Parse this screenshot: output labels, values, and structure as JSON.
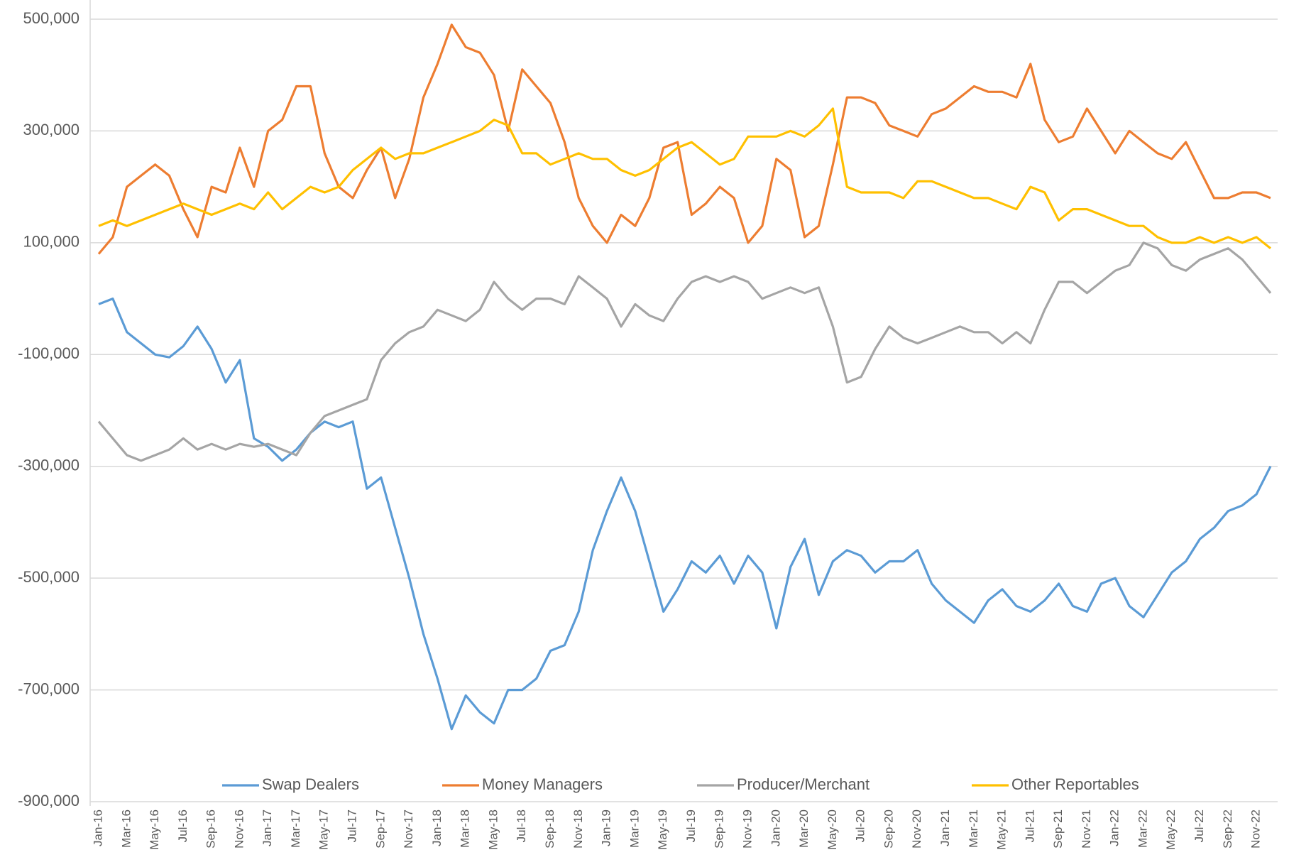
{
  "chart_data": {
    "type": "line",
    "categories": [
      "Jan-16",
      null,
      "Mar-16",
      null,
      "May-16",
      null,
      "Jul-16",
      null,
      "Sep-16",
      null,
      "Nov-16",
      null,
      "Jan-17",
      null,
      "Mar-17",
      null,
      "May-17",
      null,
      "Jul-17",
      null,
      "Sep-17",
      null,
      "Nov-17",
      null,
      "Jan-18",
      null,
      "Mar-18",
      null,
      "May-18",
      null,
      "Jul-18",
      null,
      "Sep-18",
      null,
      "Nov-18",
      null,
      "Jan-19",
      null,
      "Mar-19",
      null,
      "May-19",
      null,
      "Jul-19",
      null,
      "Sep-19",
      null,
      "Nov-19",
      null,
      "Jan-20",
      null,
      "Mar-20",
      null,
      "May-20",
      null,
      "Jul-20",
      null,
      "Sep-20",
      null,
      "Nov-20",
      null,
      "Jan-21",
      null,
      "Mar-21",
      null,
      "May-21",
      null,
      "Jul-21",
      null,
      "Sep-21",
      null,
      "Nov-21",
      null,
      "Jan-22",
      null,
      "Mar-22",
      null,
      "May-22",
      null,
      "Jul-22",
      null,
      "Sep-22",
      null,
      "Nov-22",
      null
    ],
    "series": [
      {
        "name": "Swap Dealers",
        "color": "#5b9bd5",
        "values": [
          -10000,
          0,
          -60000,
          -80000,
          -100000,
          -105000,
          -85000,
          -50000,
          -90000,
          -150000,
          -110000,
          -250000,
          -265000,
          -290000,
          -270000,
          -240000,
          -220000,
          -230000,
          -220000,
          -340000,
          -320000,
          -410000,
          -500000,
          -600000,
          -680000,
          -770000,
          -710000,
          -740000,
          -760000,
          -700000,
          -700000,
          -680000,
          -630000,
          -620000,
          -560000,
          -450000,
          -380000,
          -320000,
          -380000,
          -470000,
          -560000,
          -520000,
          -470000,
          -490000,
          -460000,
          -510000,
          -460000,
          -490000,
          -590000,
          -480000,
          -430000,
          -530000,
          -470000,
          -450000,
          -460000,
          -490000,
          -470000,
          -470000,
          -450000,
          -510000,
          -540000,
          -560000,
          -580000,
          -540000,
          -520000,
          -550000,
          -560000,
          -540000,
          -510000,
          -550000,
          -560000,
          -510000,
          -500000,
          -550000,
          -570000,
          -530000,
          -490000,
          -470000,
          -430000,
          -410000,
          -380000,
          -370000,
          -350000,
          -300000
        ]
      },
      {
        "name": "Money Managers",
        "color": "#ed7d31",
        "values": [
          80000,
          110000,
          200000,
          220000,
          240000,
          220000,
          160000,
          110000,
          200000,
          190000,
          270000,
          200000,
          300000,
          320000,
          380000,
          380000,
          260000,
          200000,
          180000,
          230000,
          270000,
          180000,
          250000,
          360000,
          420000,
          490000,
          450000,
          440000,
          400000,
          300000,
          410000,
          380000,
          350000,
          280000,
          180000,
          130000,
          100000,
          150000,
          130000,
          180000,
          270000,
          280000,
          150000,
          170000,
          200000,
          180000,
          100000,
          130000,
          250000,
          230000,
          110000,
          130000,
          240000,
          360000,
          360000,
          350000,
          310000,
          300000,
          290000,
          330000,
          340000,
          360000,
          380000,
          370000,
          370000,
          360000,
          420000,
          320000,
          280000,
          290000,
          340000,
          300000,
          260000,
          300000,
          280000,
          260000,
          250000,
          280000,
          230000,
          180000,
          180000,
          190000,
          190000,
          180000
        ]
      },
      {
        "name": "Producer/Merchant",
        "color": "#a5a5a5",
        "values": [
          -220000,
          -250000,
          -280000,
          -290000,
          -280000,
          -270000,
          -250000,
          -270000,
          -260000,
          -270000,
          -260000,
          -265000,
          -260000,
          -270000,
          -280000,
          -240000,
          -210000,
          -200000,
          -190000,
          -180000,
          -110000,
          -80000,
          -60000,
          -50000,
          -20000,
          -30000,
          -40000,
          -20000,
          30000,
          0,
          -20000,
          0,
          0,
          -10000,
          40000,
          20000,
          0,
          -50000,
          -10000,
          -30000,
          -40000,
          0,
          30000,
          40000,
          30000,
          40000,
          30000,
          0,
          10000,
          20000,
          10000,
          20000,
          -50000,
          -150000,
          -140000,
          -90000,
          -50000,
          -70000,
          -80000,
          -70000,
          -60000,
          -50000,
          -60000,
          -60000,
          -80000,
          -60000,
          -80000,
          -20000,
          30000,
          30000,
          10000,
          30000,
          50000,
          60000,
          100000,
          90000,
          60000,
          50000,
          70000,
          80000,
          90000,
          70000,
          40000,
          10000
        ]
      },
      {
        "name": "Other Reportables",
        "color": "#ffc000",
        "values": [
          130000,
          140000,
          130000,
          140000,
          150000,
          160000,
          170000,
          160000,
          150000,
          160000,
          170000,
          160000,
          190000,
          160000,
          180000,
          200000,
          190000,
          200000,
          230000,
          250000,
          270000,
          250000,
          260000,
          260000,
          270000,
          280000,
          290000,
          300000,
          320000,
          310000,
          260000,
          260000,
          240000,
          250000,
          260000,
          250000,
          250000,
          230000,
          220000,
          230000,
          250000,
          270000,
          280000,
          260000,
          240000,
          250000,
          290000,
          290000,
          290000,
          300000,
          290000,
          310000,
          340000,
          200000,
          190000,
          190000,
          190000,
          180000,
          210000,
          210000,
          200000,
          190000,
          180000,
          180000,
          170000,
          160000,
          200000,
          190000,
          140000,
          160000,
          160000,
          150000,
          140000,
          130000,
          130000,
          110000,
          100000,
          100000,
          110000,
          100000,
          110000,
          100000,
          110000,
          90000
        ]
      }
    ],
    "ylim": [
      -900000,
      500000
    ],
    "yticks": [
      {
        "value": 500000,
        "label": "500,000"
      },
      {
        "value": 300000,
        "label": "300,000"
      },
      {
        "value": 100000,
        "label": "100,000"
      },
      {
        "value": -100000,
        "label": "-100,000"
      },
      {
        "value": -300000,
        "label": "-300,000"
      },
      {
        "value": -500000,
        "label": "-500,000"
      },
      {
        "value": -700000,
        "label": "-700,000"
      },
      {
        "value": -900000,
        "label": "-900,000"
      }
    ],
    "grid": true,
    "legend": "bottom"
  }
}
